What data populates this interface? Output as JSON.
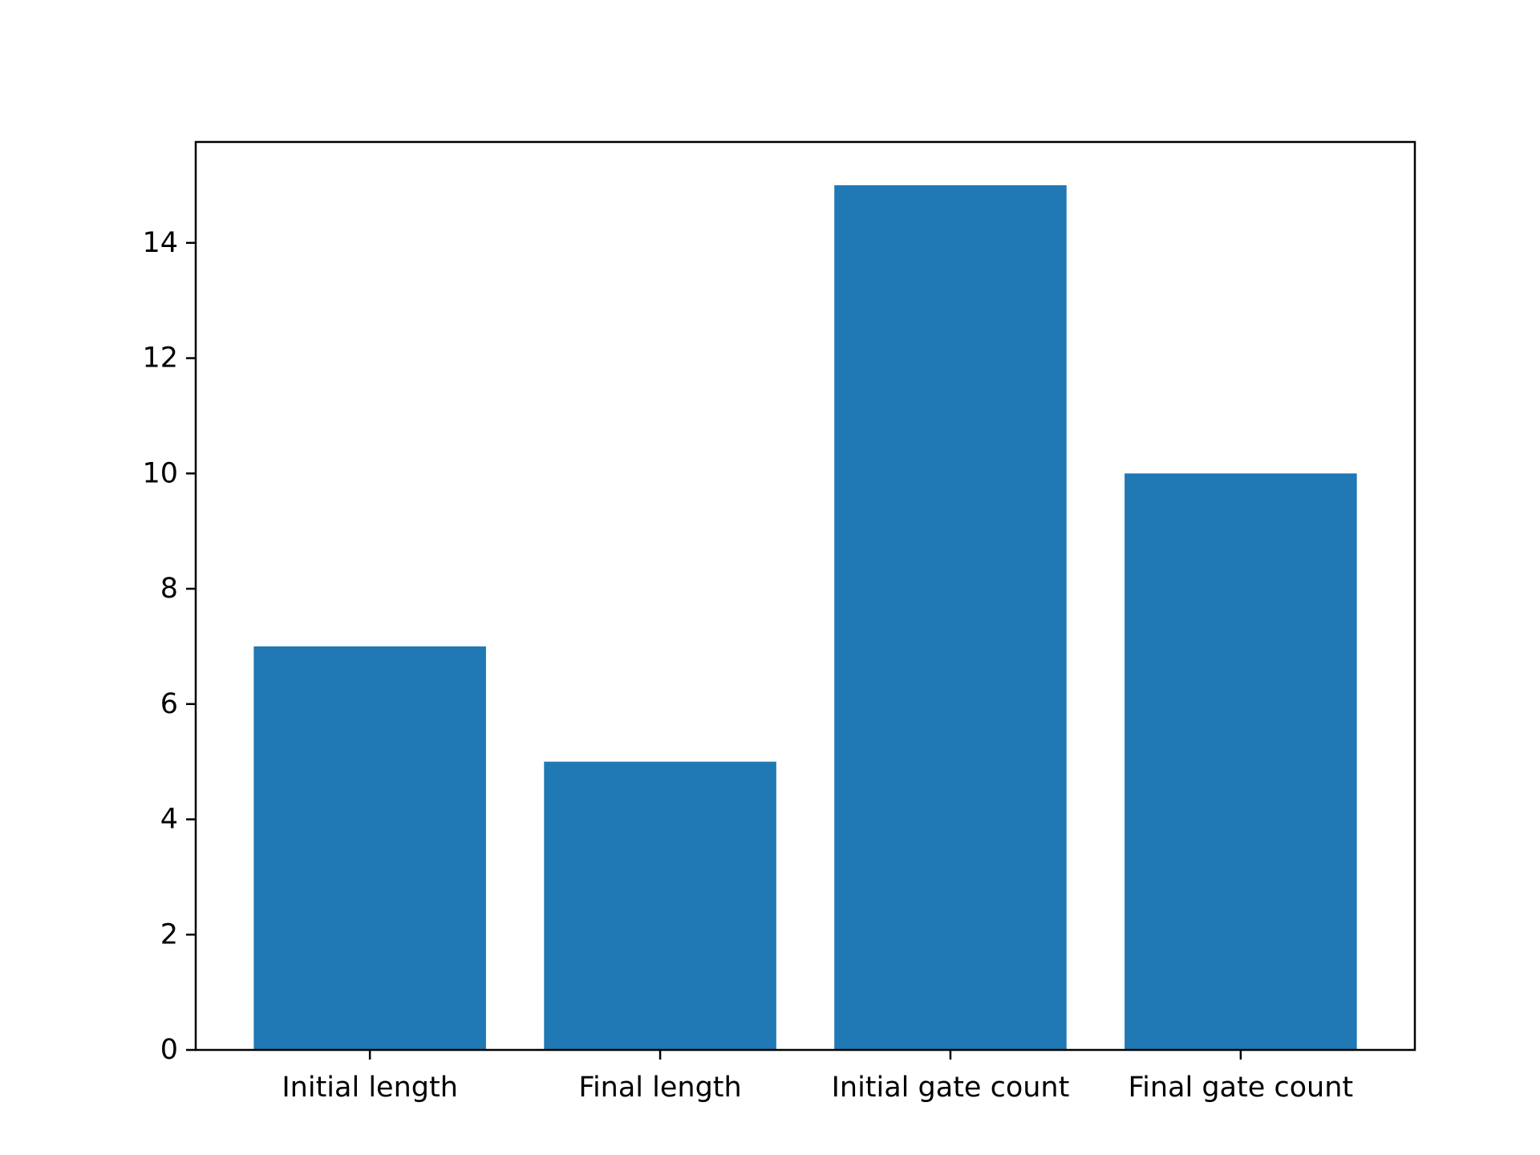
{
  "colors": {
    "bar": "#2078b4",
    "axis": "#000000",
    "background": "#ffffff"
  },
  "chart_data": {
    "type": "bar",
    "title": "",
    "xlabel": "",
    "ylabel": "",
    "categories": [
      "Initial length",
      "Final length",
      "Initial gate count",
      "Final gate count"
    ],
    "values": [
      7,
      5,
      15,
      10
    ],
    "ylim": [
      0,
      15.75
    ],
    "yticks": [
      0,
      2,
      4,
      6,
      8,
      10,
      12,
      14
    ],
    "grid": false,
    "legend": null
  }
}
